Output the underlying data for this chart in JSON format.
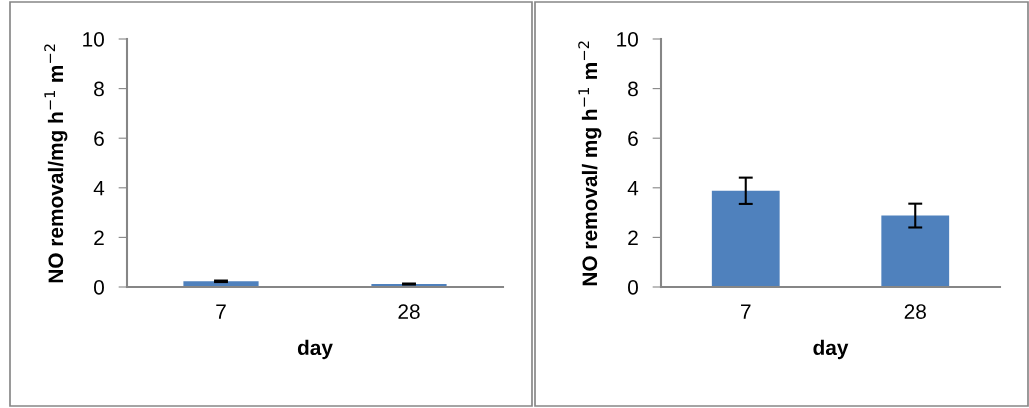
{
  "chart_data": [
    {
      "type": "bar",
      "categories": [
        "7",
        "28"
      ],
      "values": [
        0.23,
        0.12
      ],
      "errors": [
        0.03,
        0.02
      ],
      "color": "#4f81bd",
      "xlabel": "day",
      "ylabel": "NO removal/mg h$^{−1}$ m$^{−2}$",
      "ylim": [
        0,
        10
      ],
      "yticks": [
        0,
        2,
        4,
        6,
        8,
        10
      ],
      "grid": false,
      "legend": false
    },
    {
      "type": "bar",
      "categories": [
        "7",
        "28"
      ],
      "values": [
        3.88,
        2.88
      ],
      "errors": [
        0.53,
        0.48
      ],
      "color": "#4f81bd",
      "xlabel": "day",
      "ylabel": "NO removal/ mg h$^{−1}$ m$^{−2}$",
      "ylim": [
        0,
        10
      ],
      "yticks": [
        0,
        2,
        4,
        6,
        8,
        10
      ],
      "grid": false,
      "legend": false
    }
  ]
}
